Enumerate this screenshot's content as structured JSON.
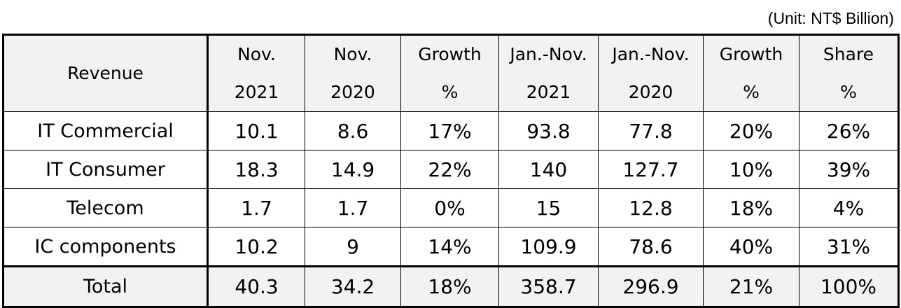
{
  "unit_note": "(Unit: NT$ Billion)",
  "headers": [
    {
      "line1": "Revenue",
      "line2": ""
    },
    {
      "line1": "Nov.",
      "line2": "2021"
    },
    {
      "line1": "Nov.",
      "line2": "2020"
    },
    {
      "line1": "Growth",
      "line2": "%"
    },
    {
      "line1": "Jan.-Nov.",
      "line2": "2021"
    },
    {
      "line1": "Jan.-Nov.",
      "line2": "2020"
    },
    {
      "line1": "Growth",
      "line2": "%"
    },
    {
      "line1": "Share",
      "line2": "%"
    }
  ],
  "rows": [
    {
      "label": "IT Commercial",
      "nov2021": "10.1",
      "nov2020": "8.6",
      "growth_nov": "17%",
      "ytd2021": "93.8",
      "ytd2020": "77.8",
      "growth_ytd": "20%",
      "share": "26%"
    },
    {
      "label": "IT Consumer",
      "nov2021": "18.3",
      "nov2020": "14.9",
      "growth_nov": "22%",
      "ytd2021": "140",
      "ytd2020": "127.7",
      "growth_ytd": "10%",
      "share": "39%"
    },
    {
      "label": "Telecom",
      "nov2021": "1.7",
      "nov2020": "1.7",
      "growth_nov": "0%",
      "ytd2021": "15",
      "ytd2020": "12.8",
      "growth_ytd": "18%",
      "share": "4%"
    },
    {
      "label": "IC components",
      "nov2021": "10.2",
      "nov2020": "9",
      "growth_nov": "14%",
      "ytd2021": "109.9",
      "ytd2020": "78.6",
      "growth_ytd": "40%",
      "share": "31%"
    }
  ],
  "total": {
    "label": "Total",
    "nov2021": "40.3",
    "nov2020": "34.2",
    "growth_nov": "18%",
    "ytd2021": "358.7",
    "ytd2020": "296.9",
    "growth_ytd": "21%",
    "share": "100%"
  }
}
